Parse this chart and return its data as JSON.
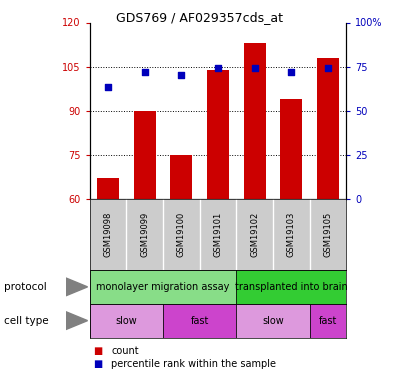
{
  "title": "GDS769 / AF029357cds_at",
  "samples": [
    "GSM19098",
    "GSM19099",
    "GSM19100",
    "GSM19101",
    "GSM19102",
    "GSM19103",
    "GSM19105"
  ],
  "bar_values": [
    67,
    90,
    75,
    104,
    113,
    94,
    108
  ],
  "dot_values": [
    98,
    103,
    102,
    104.5,
    104.5,
    103,
    104.5
  ],
  "ylim_left": [
    60,
    120
  ],
  "ylim_right": [
    0,
    100
  ],
  "yticks_left": [
    60,
    75,
    90,
    105,
    120
  ],
  "yticks_right": [
    0,
    25,
    50,
    75,
    100
  ],
  "ytick_labels_right": [
    "0",
    "25",
    "50",
    "75",
    "100%"
  ],
  "grid_lines": [
    75,
    90,
    105
  ],
  "bar_color": "#cc0000",
  "dot_color": "#0000bb",
  "protocol_groups": [
    {
      "label": "monolayer migration assay",
      "start": 0,
      "end": 4,
      "color": "#88dd88"
    },
    {
      "label": "transplanted into brain",
      "start": 4,
      "end": 7,
      "color": "#33cc33"
    }
  ],
  "cell_type_groups": [
    {
      "label": "slow",
      "start": 0,
      "end": 2,
      "color": "#dd99dd"
    },
    {
      "label": "fast",
      "start": 2,
      "end": 4,
      "color": "#cc44cc"
    },
    {
      "label": "slow",
      "start": 4,
      "end": 6,
      "color": "#dd99dd"
    },
    {
      "label": "fast",
      "start": 6,
      "end": 7,
      "color": "#cc44cc"
    }
  ],
  "sample_bg": "#cccccc",
  "left_color": "#cc0000",
  "right_color": "#0000bb",
  "title_fontsize": 9,
  "tick_fontsize": 7,
  "label_fontsize": 7,
  "sample_fontsize": 6
}
